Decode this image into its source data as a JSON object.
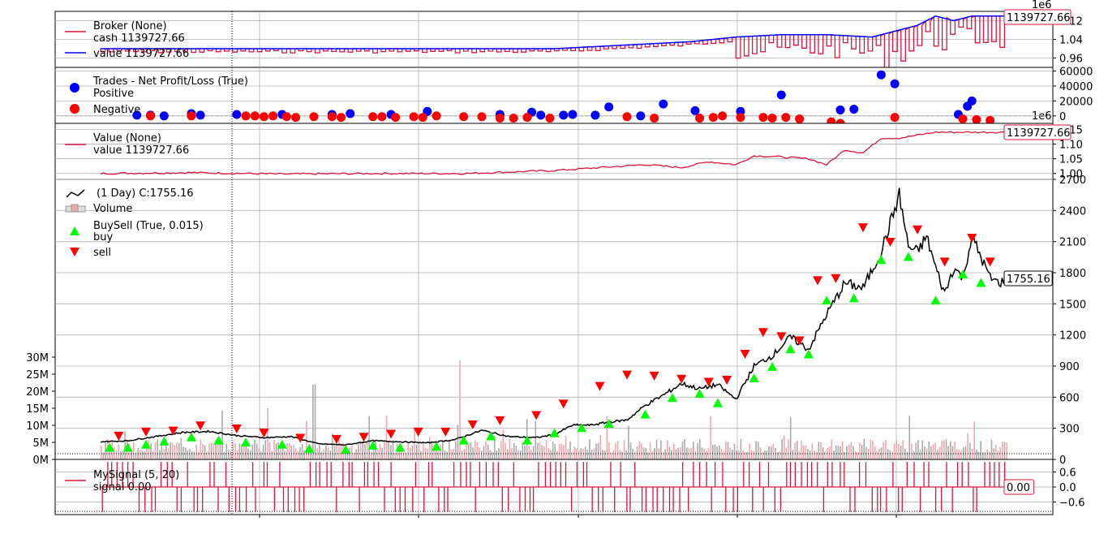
{
  "colors": {
    "broker_cash": "#dc143c",
    "broker_value": "#0000ff",
    "positive": "#0000ff",
    "negative": "#ff0000",
    "value_line": "#dc143c",
    "price": "#000000",
    "buy": "#00ff00",
    "sell": "#ff0000",
    "vol_up": "#f4a6b0",
    "vol_down": "#aaaaaa",
    "signal": "#dc143c",
    "grid": "#b0b0b0"
  },
  "chart_data": [
    {
      "panel": "broker",
      "type": "line",
      "legend": [
        {
          "name": "Broker (None)",
          "label": "cash 1139727.66"
        },
        {
          "name": "",
          "label": "value 1139727.66"
        }
      ],
      "y_ticks": [
        "1.12",
        "1.04",
        "0.96"
      ],
      "y_exponent": "1e6",
      "ylim": [
        0.92,
        1.16
      ],
      "last_label": "1139727.66",
      "series": [
        {
          "name": "value",
          "x": [
            0,
            0.1,
            0.2,
            0.3,
            0.4,
            0.5,
            0.55,
            0.6,
            0.65,
            0.7,
            0.75,
            0.8,
            0.85,
            0.88,
            0.9,
            0.92,
            0.94,
            0.96,
            1.0
          ],
          "values": [
            1.0,
            1.0,
            1.0,
            1.0,
            1.0,
            1.0,
            1.01,
            1.02,
            1.03,
            1.05,
            1.06,
            1.06,
            1.05,
            1.08,
            1.1,
            1.14,
            1.12,
            1.14,
            1.14
          ]
        }
      ]
    },
    {
      "panel": "trades",
      "type": "scatter",
      "legend": [
        {
          "name": "Trades - Net Profit/Loss (True)",
          "label": "Positive"
        },
        {
          "name": "",
          "label": "Negative"
        }
      ],
      "y_ticks": [
        "60000",
        "40000",
        "20000",
        "0"
      ],
      "ylim": [
        -10000,
        65000
      ],
      "positive": {
        "x": [
          0.04,
          0.055,
          0.07,
          0.1,
          0.11,
          0.15,
          0.2,
          0.255,
          0.275,
          0.32,
          0.36,
          0.44,
          0.475,
          0.485,
          0.51,
          0.52,
          0.545,
          0.56,
          0.595,
          0.62,
          0.655,
          0.705,
          0.75,
          0.815,
          0.83,
          0.86,
          0.875,
          0.945,
          0.955,
          0.96
        ],
        "values": [
          1000,
          1000,
          0,
          3000,
          1000,
          2000,
          2000,
          2000,
          3000,
          2000,
          6000,
          2000,
          5000,
          1000,
          1000,
          2000,
          1000,
          12000,
          0,
          16000,
          7000,
          6000,
          28000,
          8000,
          9000,
          55000,
          43000,
          2000,
          13000,
          20000
        ]
      },
      "negative": {
        "x": [
          0.055,
          0.1,
          0.16,
          0.17,
          0.18,
          0.19,
          0.205,
          0.215,
          0.235,
          0.255,
          0.265,
          0.3,
          0.31,
          0.325,
          0.345,
          0.355,
          0.37,
          0.42,
          0.4,
          0.44,
          0.455,
          0.47,
          0.495,
          0.58,
          0.61,
          0.66,
          0.675,
          0.685,
          0.705,
          0.73,
          0.74,
          0.755,
          0.77,
          0.805,
          0.815,
          0.875,
          0.95,
          0.965,
          0.98
        ],
        "values": [
          0,
          0,
          0,
          0,
          -1000,
          0,
          -1000,
          -2000,
          -1000,
          -1000,
          -2000,
          -1000,
          -1000,
          -2000,
          -1000,
          -2000,
          0,
          -1000,
          -1000,
          -3000,
          -3000,
          -2000,
          -3000,
          -1000,
          -3000,
          -3000,
          -2000,
          0,
          -2000,
          -2000,
          -3000,
          -2000,
          -4000,
          -8000,
          -10000,
          -2000,
          -4000,
          -5000,
          -6000
        ]
      }
    },
    {
      "panel": "value",
      "type": "line",
      "legend": [
        {
          "name": "Value (None)",
          "label": "value 1139727.66"
        }
      ],
      "y_ticks": [
        "1.15",
        "1.10",
        "1.05",
        "1.00"
      ],
      "y_exponent": "1e6",
      "ylim": [
        0.98,
        1.17
      ],
      "last_label": "1139727.66",
      "series": [
        {
          "name": "value",
          "x": [
            0,
            0.1,
            0.2,
            0.3,
            0.4,
            0.5,
            0.55,
            0.6,
            0.64,
            0.67,
            0.7,
            0.72,
            0.74,
            0.78,
            0.8,
            0.82,
            0.84,
            0.86,
            0.88,
            0.9,
            0.92,
            0.95,
            1.0
          ],
          "values": [
            1.0,
            1.003,
            0.998,
            1.0,
            1.0,
            1.01,
            1.02,
            1.03,
            1.02,
            1.04,
            1.03,
            1.06,
            1.058,
            1.05,
            1.03,
            1.08,
            1.07,
            1.12,
            1.12,
            1.13,
            1.14,
            1.14,
            1.14
          ]
        }
      ]
    },
    {
      "panel": "price",
      "type": "line",
      "legend": [
        {
          "name": "",
          "label": " (1 Day) C:1755.16"
        },
        {
          "name": "",
          "label": "Volume"
        },
        {
          "name": "BuySell (True, 0.015)",
          "label": "buy"
        },
        {
          "name": "",
          "label": "sell"
        }
      ],
      "y_ticks": [
        "2700",
        "2400",
        "2100",
        "1800",
        "1500",
        "1200",
        "900",
        "600",
        "300",
        "0"
      ],
      "ylim": [
        0,
        2700
      ],
      "vol_ticks": [
        "30M",
        "25M",
        "20M",
        "15M",
        "10M",
        "5M",
        "0M"
      ],
      "vol_ylim": [
        0,
        30
      ],
      "last_label": "1755.16",
      "x": [
        0,
        0.03,
        0.06,
        0.09,
        0.12,
        0.15,
        0.18,
        0.21,
        0.24,
        0.27,
        0.3,
        0.33,
        0.36,
        0.39,
        0.42,
        0.45,
        0.48,
        0.5,
        0.52,
        0.54,
        0.56,
        0.58,
        0.6,
        0.62,
        0.64,
        0.66,
        0.68,
        0.7,
        0.72,
        0.74,
        0.76,
        0.78,
        0.8,
        0.82,
        0.84,
        0.86,
        0.88,
        0.89,
        0.9,
        0.91,
        0.92,
        0.93,
        0.94,
        0.95,
        0.96,
        0.97,
        0.98,
        0.99,
        1.0
      ],
      "values": [
        170,
        180,
        220,
        260,
        270,
        230,
        210,
        220,
        150,
        140,
        180,
        170,
        160,
        190,
        280,
        220,
        210,
        240,
        330,
        330,
        360,
        380,
        520,
        620,
        730,
        680,
        720,
        580,
        900,
        1000,
        1180,
        1060,
        1400,
        1700,
        1650,
        2000,
        2550,
        2050,
        2000,
        2150,
        1850,
        1600,
        1850,
        1750,
        2150,
        1950,
        1750,
        1700,
        1755.16
      ],
      "buy_x": [
        0.01,
        0.03,
        0.05,
        0.07,
        0.1,
        0.13,
        0.16,
        0.2,
        0.23,
        0.27,
        0.3,
        0.33,
        0.37,
        0.4,
        0.43,
        0.47,
        0.5,
        0.53,
        0.56,
        0.6,
        0.63,
        0.66,
        0.68,
        0.72,
        0.74,
        0.76,
        0.78,
        0.8,
        0.83,
        0.86,
        0.89,
        0.92,
        0.95,
        0.97
      ],
      "buy_values": [
        160,
        160,
        190,
        220,
        260,
        230,
        210,
        190,
        150,
        140,
        180,
        160,
        170,
        230,
        270,
        230,
        300,
        350,
        390,
        480,
        640,
        680,
        590,
        830,
        940,
        1110,
        1060,
        1580,
        1600,
        1970,
        2000,
        1580,
        1830,
        1750
      ],
      "sell_x": [
        0.02,
        0.05,
        0.08,
        0.11,
        0.15,
        0.18,
        0.22,
        0.26,
        0.29,
        0.32,
        0.35,
        0.38,
        0.41,
        0.44,
        0.48,
        0.51,
        0.55,
        0.58,
        0.61,
        0.64,
        0.67,
        0.69,
        0.71,
        0.73,
        0.75,
        0.77,
        0.79,
        0.81,
        0.84,
        0.87,
        0.9,
        0.93,
        0.96,
        0.98
      ],
      "sell_values": [
        180,
        220,
        230,
        280,
        250,
        210,
        160,
        150,
        170,
        200,
        220,
        220,
        290,
        330,
        380,
        490,
        660,
        770,
        760,
        730,
        700,
        720,
        970,
        1180,
        1140,
        1100,
        1680,
        1700,
        2190,
        2050,
        2170,
        1860,
        2090,
        1860
      ]
    },
    {
      "panel": "signal",
      "type": "line",
      "legend": [
        {
          "name": "MySignal (5, 20)",
          "label": "signal 0.00"
        }
      ],
      "y_ticks": [
        "0.6",
        "0.0",
        "−0.6"
      ],
      "ylim": [
        -1.1,
        1.1
      ],
      "last_label": "0.00"
    }
  ]
}
